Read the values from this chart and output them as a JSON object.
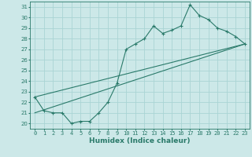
{
  "title": "",
  "xlabel": "Humidex (Indice chaleur)",
  "ylabel": "",
  "xlim": [
    -0.5,
    23.5
  ],
  "ylim": [
    19.5,
    31.5
  ],
  "xticks": [
    0,
    1,
    2,
    3,
    4,
    5,
    6,
    7,
    8,
    9,
    10,
    11,
    12,
    13,
    14,
    15,
    16,
    17,
    18,
    19,
    20,
    21,
    22,
    23
  ],
  "yticks": [
    20,
    21,
    22,
    23,
    24,
    25,
    26,
    27,
    28,
    29,
    30,
    31
  ],
  "bg_color": "#cce8e8",
  "grid_color": "#aad4d4",
  "line_color": "#2a7a6a",
  "line1_x": [
    0,
    1,
    2,
    3,
    4,
    5,
    6,
    7,
    8,
    9,
    10,
    11,
    12,
    13,
    14,
    15,
    16,
    17,
    18,
    19,
    20,
    21,
    22,
    23
  ],
  "line1_y": [
    22.5,
    21.2,
    21.0,
    21.0,
    20.0,
    20.2,
    20.2,
    21.0,
    22.0,
    23.8,
    27.0,
    27.5,
    28.0,
    29.2,
    28.5,
    28.8,
    29.2,
    31.2,
    30.2,
    29.8,
    29.0,
    28.7,
    28.2,
    27.5
  ],
  "line2_x": [
    0,
    23
  ],
  "line2_y": [
    21.0,
    27.5
  ],
  "line3_x": [
    0,
    23
  ],
  "line3_y": [
    22.5,
    27.5
  ],
  "tick_fontsize": 5.0,
  "xlabel_fontsize": 6.5,
  "xlabel_fontweight": "bold"
}
